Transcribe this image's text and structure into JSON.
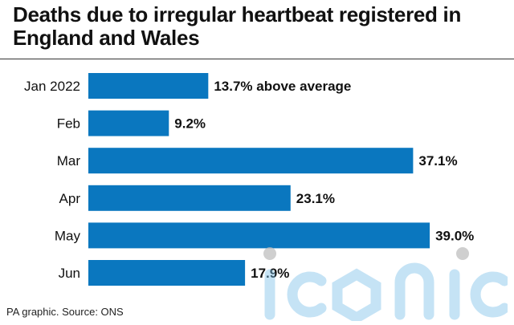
{
  "chart_data": {
    "type": "bar",
    "orientation": "horizontal",
    "title": "Deaths due to irregular heartbeat registered in England and Wales",
    "categories": [
      "Jan 2022",
      "Feb",
      "Mar",
      "Apr",
      "May",
      "Jun"
    ],
    "values": [
      13.7,
      9.2,
      37.1,
      23.1,
      39.0,
      17.9
    ],
    "value_labels": [
      "13.7% above average",
      "9.2%",
      "37.1%",
      "23.1%",
      "39.0%",
      "17.9%"
    ],
    "unit": "% above average",
    "bar_color": "#0a77bf",
    "grid": false,
    "legend": "none"
  },
  "source": "PA graphic. Source: ONS",
  "watermark": "iconic"
}
